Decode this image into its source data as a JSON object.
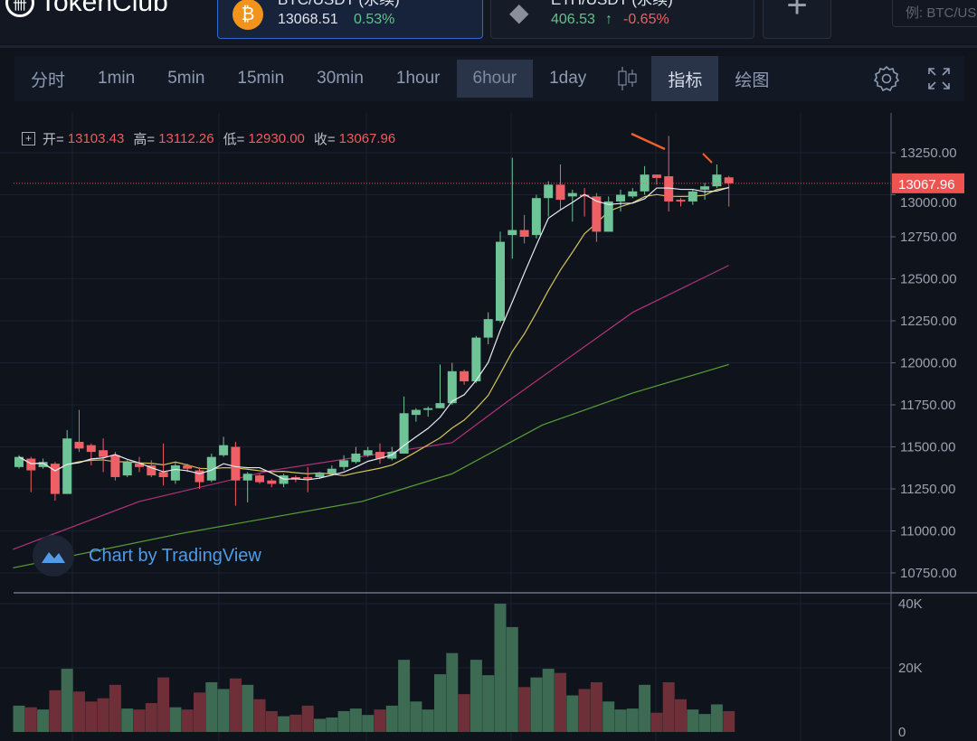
{
  "header": {
    "brand": "TokenClub",
    "tickers": [
      {
        "pair": "BTC/USDT (永续)",
        "price": "13068.51",
        "change": "0.53%",
        "icon": "bitcoin-icon"
      },
      {
        "pair": "ETH/USDT (永续)",
        "price": "406.53",
        "arrow": "↑",
        "change": "-0.65%",
        "icon": "ethereum-icon"
      }
    ],
    "add_label": "+",
    "search_placeholder": "例: BTC/USDT"
  },
  "toolbar": {
    "intervals": [
      "分时",
      "1min",
      "5min",
      "15min",
      "30min",
      "1hour",
      "6hour",
      "1day"
    ],
    "selected": "6hour",
    "indicators": "指标",
    "drawing": "绘图"
  },
  "legend": {
    "open_label": "开=",
    "open": "13103.43",
    "high_label": "高=",
    "high": "13112.26",
    "low_label": "低=",
    "low": "12930.00",
    "close_label": "收=",
    "close": "13067.96"
  },
  "watermark": "Chart by TradingView",
  "colors": {
    "up": "#6fc497",
    "down": "#ef5f66",
    "vol_up": "#3c6a52",
    "vol_down": "#6e2f38",
    "ma5": "#e8ecf2",
    "ma10": "#d4c35a",
    "ma30": "#b2327a",
    "ma60": "#5aa034",
    "accent": "#ef5350"
  },
  "chart_data": {
    "type": "candlestick",
    "interval": "6hour",
    "last_price": "13067.96",
    "price_axis": {
      "ticks": [
        "13250.00",
        "13000.00",
        "12750.00",
        "12500.00",
        "12250.00",
        "12000.00",
        "11750.00",
        "11500.00",
        "11250.00",
        "11000.00",
        "10750.00"
      ],
      "range": [
        10750,
        13250
      ]
    },
    "volume_axis": {
      "ticks": [
        "40K",
        "20K",
        "0"
      ],
      "range": [
        0,
        40000
      ]
    },
    "candles": [
      [
        11380,
        11450,
        11370,
        11440
      ],
      [
        11430,
        11440,
        11230,
        11360
      ],
      [
        11380,
        11430,
        11370,
        11410
      ],
      [
        11400,
        11410,
        11180,
        11220
      ],
      [
        11220,
        11600,
        11220,
        11550
      ],
      [
        11530,
        11720,
        11470,
        11490
      ],
      [
        11510,
        11520,
        11390,
        11470
      ],
      [
        11480,
        11550,
        11350,
        11440
      ],
      [
        11450,
        11470,
        11300,
        11320
      ],
      [
        11330,
        11420,
        11320,
        11410
      ],
      [
        11400,
        11440,
        11350,
        11380
      ],
      [
        11390,
        11420,
        11320,
        11330
      ],
      [
        11350,
        11520,
        11270,
        11320
      ],
      [
        11300,
        11410,
        11280,
        11390
      ],
      [
        11390,
        11400,
        11350,
        11370
      ],
      [
        11360,
        11380,
        11250,
        11290
      ],
      [
        11300,
        11460,
        11290,
        11440
      ],
      [
        11450,
        11560,
        11440,
        11510
      ],
      [
        11500,
        11530,
        11150,
        11300
      ],
      [
        11300,
        11350,
        11170,
        11340
      ],
      [
        11330,
        11340,
        11280,
        11290
      ],
      [
        11300,
        11310,
        11260,
        11280
      ],
      [
        11280,
        11340,
        11260,
        11330
      ],
      [
        11320,
        11330,
        11290,
        11310
      ],
      [
        11320,
        11380,
        11230,
        11310
      ],
      [
        11320,
        11350,
        11310,
        11340
      ],
      [
        11340,
        11390,
        11330,
        11370
      ],
      [
        11380,
        11450,
        11360,
        11420
      ],
      [
        11410,
        11500,
        11400,
        11460
      ],
      [
        11450,
        11500,
        11440,
        11480
      ],
      [
        11470,
        11520,
        11400,
        11430
      ],
      [
        11430,
        11500,
        11420,
        11470
      ],
      [
        11460,
        11800,
        11460,
        11700
      ],
      [
        11690,
        11730,
        11650,
        11720
      ],
      [
        11720,
        11740,
        11680,
        11730
      ],
      [
        11730,
        11990,
        11730,
        11760
      ],
      [
        11760,
        12000,
        11750,
        11950
      ],
      [
        11950,
        11960,
        11870,
        11890
      ],
      [
        11890,
        12160,
        11880,
        12150
      ],
      [
        12150,
        12300,
        12110,
        12260
      ],
      [
        12250,
        12780,
        12240,
        12720
      ],
      [
        12760,
        13220,
        12620,
        12790
      ],
      [
        12790,
        12880,
        12710,
        12750
      ],
      [
        12760,
        13000,
        12740,
        12980
      ],
      [
        12980,
        13080,
        12870,
        13060
      ],
      [
        13060,
        13180,
        12910,
        12970
      ],
      [
        12990,
        13030,
        12840,
        13010
      ],
      [
        13000,
        13040,
        12870,
        12990
      ],
      [
        12990,
        13010,
        12720,
        12780
      ],
      [
        12780,
        12990,
        12780,
        12960
      ],
      [
        12960,
        13030,
        12900,
        13000
      ],
      [
        12990,
        13040,
        12980,
        13020
      ],
      [
        13020,
        13170,
        13000,
        13120
      ],
      [
        13120,
        13120,
        13060,
        13100
      ],
      [
        13110,
        13350,
        12900,
        12960
      ],
      [
        12970,
        12980,
        12930,
        12960
      ],
      [
        12960,
        13030,
        12940,
        13020
      ],
      [
        13030,
        13070,
        12970,
        13050
      ],
      [
        13050,
        13180,
        13040,
        13120
      ],
      [
        13103.43,
        13112.26,
        12930,
        13067.96
      ]
    ],
    "volume": [
      8200,
      7700,
      7000,
      13000,
      19700,
      12600,
      9500,
      10500,
      14700,
      7300,
      7000,
      9000,
      17000,
      7700,
      7000,
      12300,
      15500,
      13400,
      16700,
      14700,
      10200,
      6500,
      4900,
      5400,
      8200,
      4100,
      4500,
      6500,
      7300,
      5300,
      7000,
      8200,
      22500,
      9500,
      7000,
      18000,
      24600,
      11800,
      22500,
      17700,
      40000,
      32700,
      14000,
      17000,
      19700,
      18400,
      11400,
      13400,
      15500,
      9500,
      7000,
      7300,
      14700,
      6000,
      15500,
      10200,
      7000,
      5600,
      8600,
      6500
    ],
    "ma30_knots": [
      [
        -0.5,
        10890
      ],
      [
        10,
        11175
      ],
      [
        21,
        11360
      ],
      [
        36,
        11525
      ],
      [
        40.5,
        11765
      ],
      [
        51,
        12300
      ],
      [
        59,
        12580
      ]
    ],
    "ma60_knots": [
      [
        -0.5,
        10780
      ],
      [
        13.5,
        10985
      ],
      [
        28.5,
        11175
      ],
      [
        36,
        11340
      ],
      [
        43.5,
        11630
      ],
      [
        51,
        11820
      ],
      [
        59,
        11990
      ]
    ]
  }
}
